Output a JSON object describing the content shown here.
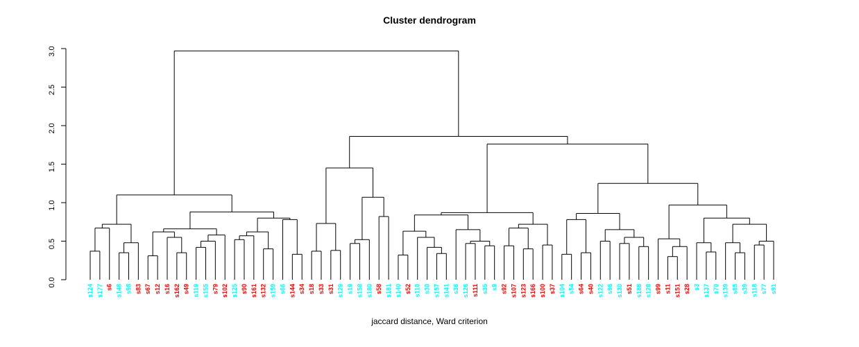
{
  "chart_data": {
    "type": "dendrogram",
    "title": "Cluster dendrogram",
    "xlabel": "jaccard distance, Ward criterion",
    "ylim": [
      0,
      3.0
    ],
    "yticks": [
      "0.0",
      "0.5",
      "1.0",
      "1.5",
      "2.0",
      "2.5",
      "3.0"
    ],
    "colors": {
      "red": "#FF0000",
      "cyan": "#00FFFF",
      "line": "#000000"
    },
    "leaves": [
      {
        "label": "s124",
        "color": "cyan"
      },
      {
        "label": "s177",
        "color": "cyan"
      },
      {
        "label": "s6",
        "color": "red"
      },
      {
        "label": "s148",
        "color": "cyan"
      },
      {
        "label": "s98",
        "color": "cyan"
      },
      {
        "label": "s83",
        "color": "red"
      },
      {
        "label": "s67",
        "color": "red"
      },
      {
        "label": "s12",
        "color": "red"
      },
      {
        "label": "s16",
        "color": "red"
      },
      {
        "label": "s162",
        "color": "red"
      },
      {
        "label": "s49",
        "color": "red"
      },
      {
        "label": "s119",
        "color": "cyan"
      },
      {
        "label": "s155",
        "color": "cyan"
      },
      {
        "label": "s79",
        "color": "red"
      },
      {
        "label": "s102",
        "color": "red"
      },
      {
        "label": "s125",
        "color": "cyan"
      },
      {
        "label": "s90",
        "color": "red"
      },
      {
        "label": "s161",
        "color": "red"
      },
      {
        "label": "s132",
        "color": "red"
      },
      {
        "label": "s159",
        "color": "cyan"
      },
      {
        "label": "s66",
        "color": "cyan"
      },
      {
        "label": "s144",
        "color": "red"
      },
      {
        "label": "s34",
        "color": "red"
      },
      {
        "label": "s18",
        "color": "red"
      },
      {
        "label": "s33",
        "color": "red"
      },
      {
        "label": "s31",
        "color": "red"
      },
      {
        "label": "s129",
        "color": "cyan"
      },
      {
        "label": "s19",
        "color": "cyan"
      },
      {
        "label": "s158",
        "color": "cyan"
      },
      {
        "label": "s180",
        "color": "cyan"
      },
      {
        "label": "s58",
        "color": "red"
      },
      {
        "label": "s181",
        "color": "cyan"
      },
      {
        "label": "s140",
        "color": "cyan"
      },
      {
        "label": "s52",
        "color": "red"
      },
      {
        "label": "s110",
        "color": "cyan"
      },
      {
        "label": "s30",
        "color": "cyan"
      },
      {
        "label": "s157",
        "color": "cyan"
      },
      {
        "label": "s141",
        "color": "cyan"
      },
      {
        "label": "s36",
        "color": "cyan"
      },
      {
        "label": "s126",
        "color": "cyan"
      },
      {
        "label": "s111",
        "color": "red"
      },
      {
        "label": "s35",
        "color": "cyan"
      },
      {
        "label": "s9",
        "color": "cyan"
      },
      {
        "label": "s92",
        "color": "red"
      },
      {
        "label": "s107",
        "color": "red"
      },
      {
        "label": "s123",
        "color": "red"
      },
      {
        "label": "s166",
        "color": "red"
      },
      {
        "label": "s100",
        "color": "red"
      },
      {
        "label": "s37",
        "color": "red"
      },
      {
        "label": "s104",
        "color": "cyan"
      },
      {
        "label": "s54",
        "color": "cyan"
      },
      {
        "label": "s64",
        "color": "red"
      },
      {
        "label": "s40",
        "color": "red"
      },
      {
        "label": "s122",
        "color": "cyan"
      },
      {
        "label": "s96",
        "color": "cyan"
      },
      {
        "label": "s130",
        "color": "cyan"
      },
      {
        "label": "s51",
        "color": "red"
      },
      {
        "label": "s188",
        "color": "cyan"
      },
      {
        "label": "s128",
        "color": "cyan"
      },
      {
        "label": "s99",
        "color": "red"
      },
      {
        "label": "s11",
        "color": "red"
      },
      {
        "label": "s151",
        "color": "red"
      },
      {
        "label": "s28",
        "color": "red"
      },
      {
        "label": "s3",
        "color": "cyan"
      },
      {
        "label": "s137",
        "color": "cyan"
      },
      {
        "label": "s70",
        "color": "cyan"
      },
      {
        "label": "s139",
        "color": "cyan"
      },
      {
        "label": "s85",
        "color": "cyan"
      },
      {
        "label": "s39",
        "color": "cyan"
      },
      {
        "label": "s118",
        "color": "cyan"
      },
      {
        "label": "s77",
        "color": "cyan"
      },
      {
        "label": "s91",
        "color": "cyan"
      }
    ],
    "tree": [
      2.97,
      [
        1.1,
        [
          0.72,
          [
            0.67,
            [
              0.37,
              0,
              1
            ],
            2
          ],
          [
            0.48,
            [
              0.35,
              3,
              4
            ],
            5
          ]
        ],
        [
          0.88,
          [
            0.66,
            [
              0.62,
              [
                0.31,
                6,
                7
              ],
              [
                0.55,
                8,
                [
                  0.35,
                  9,
                  10
                ]
              ]
            ],
            [
              0.58,
              [
                0.5,
                [
                  0.42,
                  11,
                  12
                ],
                13
              ],
              14
            ]
          ],
          [
            0.8,
            [
              0.62,
              [
                0.57,
                [
                  0.52,
                  15,
                  16
                ],
                17
              ],
              [
                0.4,
                18,
                19
              ]
            ],
            [
              0.78,
              20,
              [
                0.33,
                21,
                22
              ]
            ]
          ]
        ]
      ],
      [
        1.86,
        [
          1.45,
          [
            0.73,
            [
              0.37,
              23,
              24
            ],
            [
              0.38,
              25,
              26
            ]
          ],
          [
            1.07,
            [
              0.52,
              [
                0.47,
                27,
                28
              ],
              29
            ],
            [
              0.82,
              30,
              31
            ]
          ]
        ],
        [
          1.76,
          [
            0.87,
            [
              0.84,
              [
                0.63,
                [
                  0.32,
                  32,
                  33
                ],
                [
                  0.55,
                  34,
                  [
                    0.42,
                    35,
                    [
                      0.34,
                      36,
                      37
                    ]
                  ]
                ]
              ],
              [
                0.65,
                38,
                [
                  0.5,
                  [
                    0.47,
                    39,
                    40
                  ],
                  [
                    0.44,
                    41,
                    42
                  ]
                ]
              ]
            ],
            [
              0.72,
              [
                0.67,
                [
                  0.44,
                  43,
                  44
                ],
                [
                  0.4,
                  45,
                  46
                ]
              ],
              [
                0.45,
                47,
                48
              ]
            ]
          ],
          [
            1.25,
            [
              0.86,
              [
                0.78,
                [
                  0.33,
                  49,
                  50
                ],
                [
                  0.35,
                  51,
                  52
                ]
              ],
              [
                0.65,
                [
                  0.5,
                  53,
                  54
                ],
                [
                  0.55,
                  [
                    0.47,
                    55,
                    56
                  ],
                  [
                    0.43,
                    57,
                    58
                  ]
                ]
              ]
            ],
            [
              0.97,
              [
                0.53,
                59,
                [
                  0.43,
                  [
                    0.3,
                    60,
                    61
                  ],
                  62
                ]
              ],
              [
                0.8,
                [
                  0.48,
                  63,
                  [
                    0.36,
                    64,
                    65
                  ]
                ],
                [
                  0.72,
                  [
                    0.48,
                    66,
                    [
                      0.35,
                      67,
                      68
                    ]
                  ],
                  [
                    0.5,
                    [
                      0.45,
                      69,
                      70
                    ],
                    71
                  ]
                ]
              ]
            ]
          ]
        ]
      ]
    ]
  }
}
